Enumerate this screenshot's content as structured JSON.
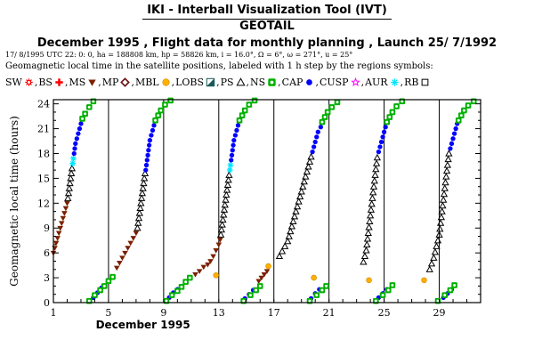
{
  "header": {
    "title": "IKI - Interball Visualization Tool (IVT)",
    "subtitle": "GEOTAIL",
    "heading": "December 1995 ,  Flight data for monthly planning ,   Launch 25/ 7/1992",
    "info_line": "17/ 8/1995 UTC 22: 0: 0, ha =  188808 km, hp =  58826 km, i = 16.0°, Ω =   6°, ω = 271°, u =  25°",
    "description": "Geomagnetic local time in the satellite positions, labeled with 1 h step by the regions symbols:"
  },
  "legend": [
    {
      "label": "SW",
      "symbol": "sun",
      "color": "#ff0000"
    },
    {
      "label": "BS",
      "symbol": "plus",
      "color": "#ff0000"
    },
    {
      "label": "MS",
      "symbol": "triangle-down",
      "color": "#7a2000"
    },
    {
      "label": "MP",
      "symbol": "diamond",
      "color": "#6b1010"
    },
    {
      "label": "MBL",
      "symbol": "circle",
      "color": "#ffb000"
    },
    {
      "label": "LOBS",
      "symbol": "split-square",
      "color": "#1a5a5a"
    },
    {
      "label": "PS",
      "symbol": "triangle-up",
      "color": "#000000"
    },
    {
      "label": "NS",
      "symbol": "ring-square",
      "color": "#00b000"
    },
    {
      "label": "CAP",
      "symbol": "dot",
      "color": "#0000ff"
    },
    {
      "label": "CUSP",
      "symbol": "star",
      "color": "#ff00ff"
    },
    {
      "label": "AUR",
      "symbol": "asterisk",
      "color": "#00e5ff"
    },
    {
      "label": "RB",
      "symbol": "square",
      "color": "#000000"
    }
  ],
  "chart_data": {
    "type": "scatter",
    "xlabel": "December 1995",
    "ylabel": "Geomagnetic local time (hours)",
    "xlim": [
      1,
      32
    ],
    "ylim": [
      0,
      24.5
    ],
    "xticks": [
      1,
      5,
      9,
      13,
      17,
      21,
      25,
      29
    ],
    "yticks": [
      0,
      3,
      6,
      9,
      12,
      15,
      18,
      21,
      24
    ],
    "grid": true,
    "series": [
      {
        "name": "MS",
        "symbol": "triangle-down",
        "color": "#7a2000",
        "points": [
          [
            1.0,
            6.0
          ],
          [
            1.1,
            6.6
          ],
          [
            1.2,
            7.2
          ],
          [
            1.3,
            7.8
          ],
          [
            1.4,
            8.4
          ],
          [
            1.5,
            9.0
          ],
          [
            1.6,
            9.6
          ],
          [
            1.7,
            10.2
          ],
          [
            1.8,
            10.8
          ],
          [
            1.9,
            11.4
          ],
          [
            2.0,
            12.0
          ],
          [
            5.6,
            4.2
          ],
          [
            5.8,
            4.8
          ],
          [
            6.0,
            5.4
          ],
          [
            6.2,
            6.0
          ],
          [
            6.4,
            6.6
          ],
          [
            6.6,
            7.2
          ],
          [
            6.8,
            7.8
          ],
          [
            7.0,
            8.4
          ],
          [
            11.3,
            3.4
          ],
          [
            11.6,
            3.8
          ],
          [
            11.9,
            4.3
          ],
          [
            12.2,
            4.6
          ],
          [
            12.4,
            5.0
          ],
          [
            12.6,
            5.6
          ],
          [
            12.8,
            6.3
          ],
          [
            13.0,
            7.0
          ],
          [
            13.1,
            7.6
          ],
          [
            15.9,
            2.6
          ],
          [
            16.1,
            3.0
          ],
          [
            16.3,
            3.4
          ],
          [
            16.5,
            3.8
          ]
        ]
      },
      {
        "name": "MBL",
        "symbol": "circle",
        "color": "#ffb000",
        "points": [
          [
            12.8,
            3.3
          ],
          [
            16.6,
            4.4
          ],
          [
            19.9,
            3.0
          ],
          [
            23.9,
            2.7
          ],
          [
            27.9,
            2.7
          ]
        ]
      },
      {
        "name": "PS",
        "symbol": "triangle-up",
        "color": "#000000",
        "points": [
          [
            2.05,
            12.6
          ],
          [
            2.1,
            13.2
          ],
          [
            2.15,
            13.8
          ],
          [
            2.2,
            14.4
          ],
          [
            2.25,
            15.0
          ],
          [
            2.3,
            15.6
          ],
          [
            2.35,
            16.2
          ],
          [
            7.1,
            9.0
          ],
          [
            7.15,
            9.6
          ],
          [
            7.2,
            10.2
          ],
          [
            7.25,
            10.8
          ],
          [
            7.3,
            11.4
          ],
          [
            7.35,
            12.0
          ],
          [
            7.4,
            12.6
          ],
          [
            7.45,
            13.2
          ],
          [
            7.5,
            13.8
          ],
          [
            7.55,
            14.4
          ],
          [
            7.6,
            15.0
          ],
          [
            7.65,
            15.6
          ],
          [
            13.15,
            8.2
          ],
          [
            13.2,
            8.8
          ],
          [
            13.25,
            9.4
          ],
          [
            13.3,
            10.0
          ],
          [
            13.35,
            10.6
          ],
          [
            13.4,
            11.2
          ],
          [
            13.45,
            11.8
          ],
          [
            13.5,
            12.4
          ],
          [
            13.55,
            13.0
          ],
          [
            13.6,
            13.6
          ],
          [
            13.65,
            14.2
          ],
          [
            13.7,
            14.8
          ],
          [
            13.75,
            15.4
          ],
          [
            17.4,
            5.6
          ],
          [
            17.6,
            6.2
          ],
          [
            17.8,
            6.8
          ],
          [
            18.0,
            7.4
          ],
          [
            18.1,
            8.0
          ],
          [
            18.2,
            8.6
          ],
          [
            18.3,
            9.2
          ],
          [
            18.4,
            9.8
          ],
          [
            18.5,
            10.4
          ],
          [
            18.6,
            11.0
          ],
          [
            18.7,
            11.6
          ],
          [
            18.8,
            12.2
          ],
          [
            18.9,
            12.8
          ],
          [
            19.0,
            13.4
          ],
          [
            19.1,
            14.0
          ],
          [
            19.2,
            14.6
          ],
          [
            19.3,
            15.2
          ],
          [
            19.4,
            15.8
          ],
          [
            19.5,
            16.4
          ],
          [
            19.6,
            17.0
          ],
          [
            19.7,
            17.6
          ],
          [
            23.5,
            4.9
          ],
          [
            23.6,
            5.6
          ],
          [
            23.7,
            6.3
          ],
          [
            23.75,
            7.0
          ],
          [
            23.8,
            7.7
          ],
          [
            23.85,
            8.4
          ],
          [
            23.9,
            9.1
          ],
          [
            23.95,
            9.8
          ],
          [
            24.0,
            10.5
          ],
          [
            24.05,
            11.2
          ],
          [
            24.1,
            11.9
          ],
          [
            24.15,
            12.6
          ],
          [
            24.2,
            13.3
          ],
          [
            24.25,
            14.0
          ],
          [
            24.3,
            14.7
          ],
          [
            24.35,
            15.4
          ],
          [
            24.4,
            16.1
          ],
          [
            24.45,
            16.8
          ],
          [
            24.5,
            17.5
          ],
          [
            28.3,
            4.0
          ],
          [
            28.45,
            4.7
          ],
          [
            28.6,
            5.4
          ],
          [
            28.7,
            6.1
          ],
          [
            28.8,
            6.8
          ],
          [
            28.9,
            7.5
          ],
          [
            29.0,
            8.2
          ],
          [
            29.05,
            8.9
          ],
          [
            29.1,
            9.6
          ],
          [
            29.15,
            10.3
          ],
          [
            29.2,
            11.0
          ],
          [
            29.25,
            11.7
          ],
          [
            29.3,
            12.4
          ],
          [
            29.35,
            13.1
          ],
          [
            29.4,
            13.8
          ],
          [
            29.45,
            14.5
          ],
          [
            29.5,
            15.2
          ],
          [
            29.55,
            15.9
          ],
          [
            29.6,
            16.6
          ],
          [
            29.65,
            17.3
          ],
          [
            29.7,
            18.0
          ]
        ]
      },
      {
        "name": "AUR",
        "symbol": "asterisk",
        "color": "#00e5ff",
        "points": [
          [
            2.4,
            16.8
          ],
          [
            2.45,
            17.4
          ],
          [
            13.8,
            16.0
          ],
          [
            13.85,
            16.6
          ]
        ]
      },
      {
        "name": "CAP",
        "symbol": "dot",
        "color": "#0000ff",
        "points": [
          [
            2.5,
            18.0
          ],
          [
            2.55,
            18.6
          ],
          [
            2.6,
            19.2
          ],
          [
            2.7,
            19.8
          ],
          [
            2.8,
            20.4
          ],
          [
            2.9,
            21.0
          ],
          [
            3.0,
            21.6
          ],
          [
            7.7,
            16.0
          ],
          [
            7.75,
            16.6
          ],
          [
            7.8,
            17.2
          ],
          [
            7.85,
            17.8
          ],
          [
            7.9,
            18.4
          ],
          [
            7.95,
            19.0
          ],
          [
            8.0,
            19.6
          ],
          [
            8.1,
            20.2
          ],
          [
            8.2,
            20.8
          ],
          [
            8.3,
            21.4
          ],
          [
            13.9,
            17.2
          ],
          [
            13.95,
            17.8
          ],
          [
            14.0,
            18.4
          ],
          [
            14.05,
            19.0
          ],
          [
            14.1,
            19.6
          ],
          [
            14.2,
            20.2
          ],
          [
            14.3,
            20.8
          ],
          [
            14.4,
            21.4
          ],
          [
            19.8,
            18.2
          ],
          [
            19.9,
            18.8
          ],
          [
            20.0,
            19.4
          ],
          [
            20.1,
            20.0
          ],
          [
            20.2,
            20.6
          ],
          [
            20.4,
            21.2
          ],
          [
            24.6,
            18.2
          ],
          [
            24.7,
            18.8
          ],
          [
            24.8,
            19.4
          ],
          [
            24.9,
            20.0
          ],
          [
            25.0,
            20.6
          ],
          [
            25.1,
            21.2
          ],
          [
            29.8,
            18.6
          ],
          [
            29.9,
            19.2
          ],
          [
            30.0,
            19.8
          ],
          [
            30.1,
            20.4
          ],
          [
            30.2,
            21.0
          ],
          [
            30.3,
            21.6
          ],
          [
            3.9,
            0.6
          ],
          [
            4.2,
            1.2
          ],
          [
            4.5,
            1.8
          ],
          [
            9.4,
            0.6
          ],
          [
            9.7,
            1.2
          ],
          [
            10.0,
            1.6
          ],
          [
            14.9,
            0.5
          ],
          [
            15.2,
            1.0
          ],
          [
            15.5,
            1.5
          ],
          [
            19.7,
            0.5
          ],
          [
            20.0,
            1.1
          ],
          [
            20.3,
            1.6
          ],
          [
            24.6,
            0.6
          ],
          [
            24.9,
            1.1
          ],
          [
            25.2,
            1.6
          ],
          [
            29.3,
            0.6
          ],
          [
            29.6,
            1.1
          ],
          [
            29.9,
            1.6
          ]
        ]
      },
      {
        "name": "NS",
        "symbol": "ring-square",
        "color": "#00b000",
        "points": [
          [
            3.1,
            22.2
          ],
          [
            3.3,
            22.8
          ],
          [
            3.6,
            23.6
          ],
          [
            3.9,
            24.3
          ],
          [
            3.6,
            0.2
          ],
          [
            4.0,
            0.9
          ],
          [
            4.4,
            1.5
          ],
          [
            4.7,
            2.0
          ],
          [
            5.0,
            2.6
          ],
          [
            5.3,
            3.1
          ],
          [
            8.4,
            22.0
          ],
          [
            8.6,
            22.6
          ],
          [
            8.8,
            23.2
          ],
          [
            9.1,
            23.9
          ],
          [
            9.5,
            24.4
          ],
          [
            9.2,
            0.2
          ],
          [
            9.6,
            0.9
          ],
          [
            10.0,
            1.4
          ],
          [
            10.3,
            1.9
          ],
          [
            10.6,
            2.5
          ],
          [
            10.9,
            3.0
          ],
          [
            14.5,
            22.0
          ],
          [
            14.7,
            22.6
          ],
          [
            14.9,
            23.2
          ],
          [
            15.2,
            23.9
          ],
          [
            15.6,
            24.4
          ],
          [
            14.8,
            0.2
          ],
          [
            15.3,
            0.9
          ],
          [
            15.7,
            1.5
          ],
          [
            16.0,
            2.0
          ],
          [
            20.5,
            21.8
          ],
          [
            20.7,
            22.4
          ],
          [
            20.9,
            23.0
          ],
          [
            21.2,
            23.6
          ],
          [
            21.6,
            24.2
          ],
          [
            19.6,
            0.2
          ],
          [
            20.1,
            0.9
          ],
          [
            20.5,
            1.5
          ],
          [
            20.8,
            2.0
          ],
          [
            25.2,
            21.8
          ],
          [
            25.4,
            22.4
          ],
          [
            25.6,
            23.0
          ],
          [
            25.9,
            23.7
          ],
          [
            26.3,
            24.3
          ],
          [
            24.4,
            0.2
          ],
          [
            24.9,
            0.9
          ],
          [
            25.3,
            1.5
          ],
          [
            25.6,
            2.1
          ],
          [
            30.4,
            22.0
          ],
          [
            30.6,
            22.6
          ],
          [
            30.8,
            23.2
          ],
          [
            31.1,
            23.8
          ],
          [
            31.5,
            24.3
          ],
          [
            28.9,
            0.2
          ],
          [
            29.4,
            0.9
          ],
          [
            29.8,
            1.5
          ],
          [
            30.1,
            2.1
          ]
        ]
      }
    ]
  }
}
